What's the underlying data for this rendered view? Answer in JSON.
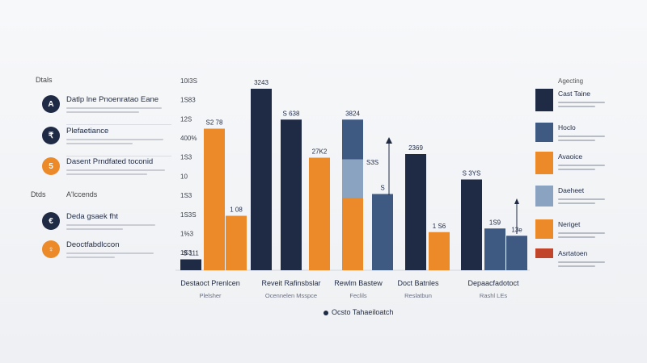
{
  "sidebar": {
    "heading_top": "Dtals",
    "heading_mid": "Dtds",
    "heading_mid_aside": "A'lccends",
    "items": [
      {
        "icon": "A",
        "icon_name": "letter-a-icon",
        "color": "#1f2a44",
        "title": "Datlp lne Pnoenratao Eane"
      },
      {
        "icon": "₹",
        "icon_name": "currency-icon",
        "color": "#1f2a44",
        "title": "Plefaetiance"
      },
      {
        "icon": "5",
        "icon_name": "number-five-icon",
        "color": "#ec8a2a",
        "title": "Dasent Prndfated toconid"
      },
      {
        "icon": "€",
        "icon_name": "euro-icon",
        "color": "#1f2a44",
        "title": "Deda gsaek fht"
      },
      {
        "icon": "♀",
        "icon_name": "person-icon",
        "color": "#ec8a2a",
        "title": "Deoctfabdlccon"
      }
    ]
  },
  "chart_data": {
    "type": "bar",
    "y_ticks": [
      "10I3S",
      "1S83",
      "12S",
      "400%",
      "1S3",
      "10",
      "1S3",
      "1S3S",
      "1%3",
      "1S3"
    ],
    "groups": [
      {
        "category": "Destaoct Prenlcen",
        "sublabel": "Plelsher",
        "bars": [
          {
            "label": "S 111",
            "value": 0.06,
            "color": "#1f2a44"
          },
          {
            "label": "S2 78",
            "value": 0.78,
            "color": "#ec8a2a"
          },
          {
            "label": "1 08",
            "value": 0.3,
            "color": "#ec8a2a"
          }
        ]
      },
      {
        "category": "Reveit Rafinsbslar",
        "sublabel": "Ocennelen Msspce",
        "bars": [
          {
            "label": "3243",
            "value": 1.0,
            "color": "#1f2a44"
          },
          {
            "label": "S 638",
            "value": 0.83,
            "color": "#1f2a44"
          },
          {
            "label": "27K2",
            "value": 0.62,
            "color": "#ec8a2a"
          }
        ]
      },
      {
        "category": "Rewlm Bastew",
        "sublabel": "Feclils",
        "bars": [
          {
            "label": "3824",
            "value": 0.83,
            "color": "#3f5a82",
            "stack_label": "S3S",
            "stack_value": 0.21,
            "stack_color": "#8aa3c0",
            "base_color": "#ec8a2a"
          },
          {
            "label": "S",
            "value": 0.42,
            "color": "#3f5a82"
          }
        ]
      },
      {
        "category": "Doct Batnles",
        "sublabel": "Reslatbun",
        "bars": [
          {
            "label": "2369",
            "value": 0.64,
            "color": "#1f2a44"
          },
          {
            "label": "1 S6",
            "value": 0.21,
            "color": "#ec8a2a"
          }
        ]
      },
      {
        "category": "Depaacfadotoct",
        "sublabel": "Rashl LEs",
        "bars": [
          {
            "label": "S 3YS",
            "value": 0.5,
            "color": "#1f2a44"
          },
          {
            "label": "1S9",
            "value": 0.23,
            "color": "#3f5a82"
          },
          {
            "label": "13e",
            "value": 0.19,
            "color": "#3f5a82"
          }
        ]
      }
    ],
    "annotation_arrows": true
  },
  "footer": {
    "text": "Ocsto Tahaeiloatch"
  },
  "legend": {
    "heading": "Agecting",
    "items": [
      {
        "label": "Cast Taine",
        "color": "#1f2a44"
      },
      {
        "label": "Hoclo",
        "color": "#3f5a82"
      },
      {
        "label": "Avaoice",
        "color": "#ec8a2a"
      },
      {
        "label": "Daeheet",
        "color": "#8aa3c0"
      },
      {
        "label": "Neriget",
        "color": "#ec8a2a"
      },
      {
        "label": "Asrtatoen",
        "color": "#c0452a"
      }
    ]
  }
}
